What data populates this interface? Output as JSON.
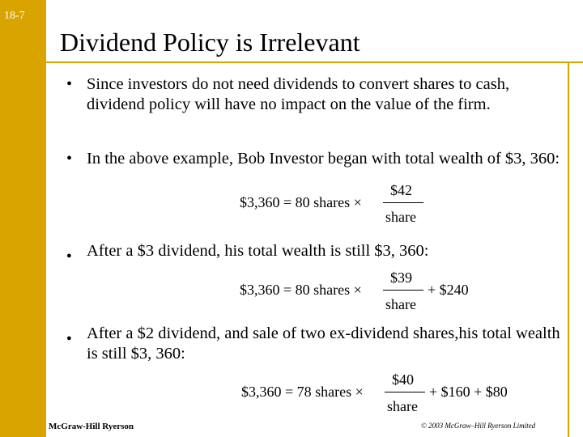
{
  "slide_number": "18-7",
  "title": "Dividend Policy is Irrelevant",
  "bullets": [
    {
      "mark": "•",
      "text": "Since investors do not need dividends to convert shares to cash, dividend policy will have no impact on the value of the firm."
    },
    {
      "mark": "•",
      "text": "In the above example, Bob Investor began with total wealth of $3, 360:"
    },
    {
      "mark": "●",
      "text": "After a $3 dividend, his total wealth is still $3, 360:"
    },
    {
      "mark": "●",
      "text": "After a $2 dividend, and sale of two ex-dividend shares,his total wealth is still $3, 360:"
    }
  ],
  "equations": [
    {
      "lhs": "$3,360 = 80 shares ×",
      "numerator": "$42",
      "denominator": "share",
      "tail": ""
    },
    {
      "lhs": "$3,360 = 80 shares ×",
      "numerator": "$39",
      "denominator": "share",
      "tail": "+ $240"
    },
    {
      "lhs": "$3,360 = 78 shares ×",
      "numerator": "$40",
      "denominator": "share",
      "tail": "+ $160 + $80"
    }
  ],
  "footer": {
    "publisher": "McGraw-Hill Ryerson",
    "copyright": "© 2003 McGraw–Hill Ryerson Limited"
  },
  "colors": {
    "accent": "#d9a300"
  }
}
